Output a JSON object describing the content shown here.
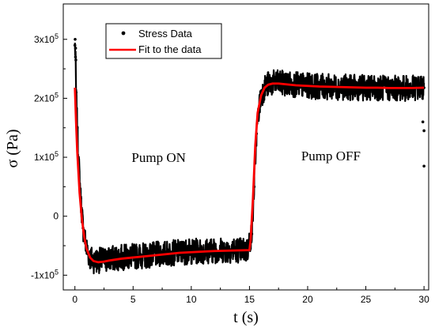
{
  "chart_data": {
    "type": "scatter",
    "xlabel": "t (s)",
    "ylabel": "σ (Pa)",
    "xlim": [
      -1,
      30.4
    ],
    "ylim": [
      -125000,
      360000
    ],
    "xticks": [
      0,
      5,
      10,
      15,
      20,
      25,
      30
    ],
    "xtick_labels": [
      "0",
      "5",
      "10",
      "15",
      "20",
      "25",
      "30"
    ],
    "yticks": [
      -100000,
      0,
      100000,
      200000,
      300000
    ],
    "ytick_labels": [
      {
        "mant": "-1x10",
        "exp": "5"
      },
      {
        "mant": "0",
        "exp": ""
      },
      {
        "mant": "1x10",
        "exp": "5"
      },
      {
        "mant": "2x10",
        "exp": "5"
      },
      {
        "mant": "3x10",
        "exp": "5"
      }
    ],
    "legend": {
      "position": "top-left",
      "entries": [
        "Stress Data",
        "Fit to the data"
      ]
    },
    "annotations": [
      {
        "text": "Pump ON",
        "x": 7.2,
        "y": 92000
      },
      {
        "text": "Pump OFF",
        "x": 22.0,
        "y": 95000
      }
    ],
    "series": [
      {
        "name": "Stress Data",
        "kind": "points",
        "color": "#000000",
        "noise": 22000,
        "x": [
          0.0,
          0.05,
          0.1,
          0.2,
          0.3,
          0.5,
          0.7,
          1.0,
          1.3,
          1.6,
          2.0,
          2.5,
          3.0,
          4.0,
          5.0,
          6.0,
          7.0,
          8.0,
          9.0,
          10.0,
          11.0,
          12.0,
          13.0,
          14.0,
          14.8,
          15.2,
          15.4,
          15.6,
          15.8,
          16.0,
          16.3,
          16.6,
          17.0,
          17.5,
          18.0,
          19.0,
          20.0,
          21.0,
          22.0,
          23.0,
          24.0,
          25.0,
          26.0,
          27.0,
          28.0,
          29.0,
          30.0
        ],
        "y": [
          290000,
          270000,
          210000,
          150000,
          100000,
          30000,
          -20000,
          -55000,
          -70000,
          -75000,
          -75000,
          -74000,
          -72000,
          -70000,
          -68000,
          -67000,
          -65000,
          -63000,
          -61000,
          -60000,
          -59000,
          -58000,
          -58000,
          -57000,
          -58000,
          -30000,
          50000,
          140000,
          180000,
          205000,
          218000,
          224000,
          226000,
          226000,
          225000,
          223000,
          221000,
          220000,
          219000,
          219000,
          218000,
          218000,
          218000,
          217000,
          217000,
          217000,
          218000
        ]
      },
      {
        "name": "Fit to the data",
        "kind": "line",
        "color": "#ff0000",
        "x": [
          0.0,
          0.1,
          0.2,
          0.4,
          0.6,
          0.8,
          1.0,
          1.3,
          1.6,
          2.0,
          2.5,
          3.0,
          4.0,
          5.0,
          6.0,
          7.0,
          8.0,
          9.0,
          10.0,
          11.0,
          12.0,
          13.0,
          14.0,
          15.0,
          15.1,
          15.3,
          15.5,
          15.7,
          16.0,
          16.3,
          16.6,
          17.0,
          17.5,
          18.0,
          19.0,
          20.0,
          21.0,
          22.0,
          23.0,
          24.0,
          25.0,
          26.0,
          27.0,
          28.0,
          29.0,
          30.0
        ],
        "y": [
          218000,
          160000,
          110000,
          40000,
          -5000,
          -35000,
          -55000,
          -70000,
          -76000,
          -78000,
          -77000,
          -75000,
          -72000,
          -70000,
          -68000,
          -66000,
          -64000,
          -62000,
          -61000,
          -60000,
          -59000,
          -58500,
          -58000,
          -57500,
          -40000,
          30000,
          120000,
          175000,
          205000,
          218000,
          223000,
          225000,
          225000,
          224000,
          222000,
          221000,
          220000,
          219500,
          219000,
          218500,
          218000,
          218000,
          217500,
          217500,
          217500,
          218000
        ]
      }
    ]
  }
}
